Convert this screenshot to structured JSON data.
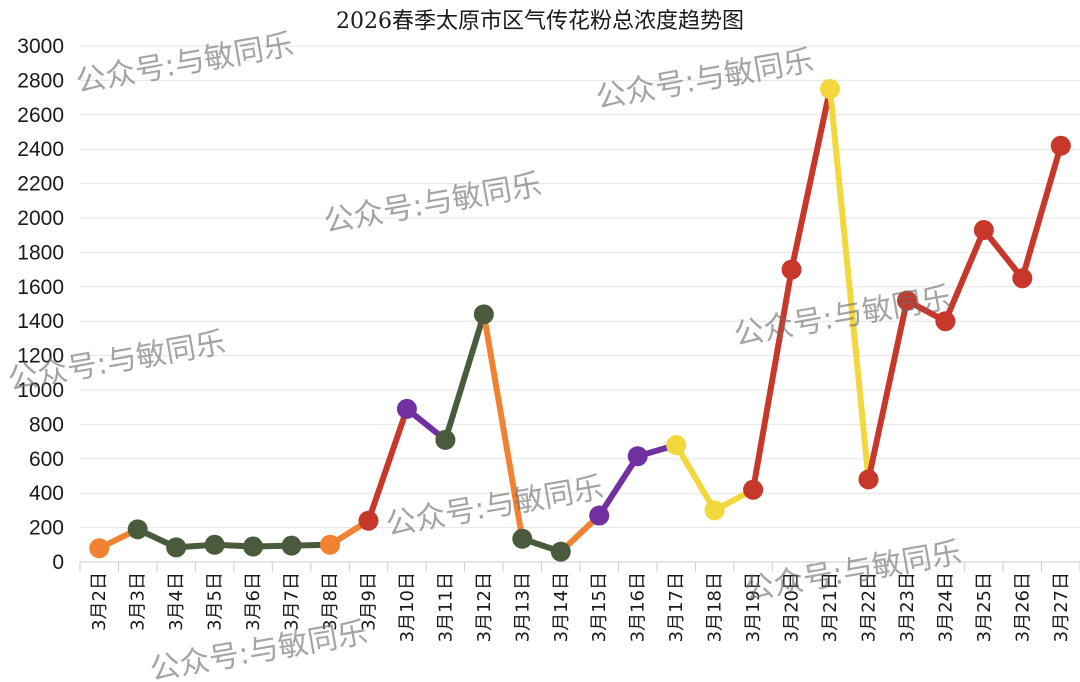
{
  "chart_data": {
    "type": "line",
    "title": "2026春季太原市区气传花粉总浓度趋势图",
    "categories": [
      "3月2日",
      "3月3日",
      "3月4日",
      "3月5日",
      "3月6日",
      "3月7日",
      "3月8日",
      "3月9日",
      "3月10日",
      "3月11日",
      "3月12日",
      "3月13日",
      "3月14日",
      "3月15日",
      "3月16日",
      "3月17日",
      "3月18日",
      "3月19日",
      "3月20日",
      "3月21日",
      "3月22日",
      "3月23日",
      "3月24日",
      "3月25日",
      "3月26日",
      "3月27日"
    ],
    "values": [
      80,
      190,
      85,
      100,
      90,
      95,
      100,
      240,
      890,
      710,
      1440,
      135,
      60,
      270,
      615,
      680,
      300,
      420,
      1700,
      2750,
      480,
      1520,
      1400,
      1930,
      1650,
      2420
    ],
    "point_colors": [
      "#F08232",
      "#4A5A3C",
      "#4A5A3C",
      "#4A5A3C",
      "#4A5A3C",
      "#4A5A3C",
      "#F08232",
      "#C8382A",
      "#7030A0",
      "#4A5A3C",
      "#4A5A3C",
      "#4A5A3C",
      "#4A5A3C",
      "#7030A0",
      "#7030A0",
      "#F2D83C",
      "#F2D83C",
      "#C8382A",
      "#C8382A",
      "#F2D83C",
      "#C8382A",
      "#C8382A",
      "#C8382A",
      "#C8382A",
      "#C8382A",
      "#C8382A"
    ],
    "segment_colors": [
      "#F08232",
      "#4A5A3C",
      "#4A5A3C",
      "#4A5A3C",
      "#4A5A3C",
      "#4A5A3C",
      "#F08232",
      "#C8382A",
      "#7030A0",
      "#4A5A3C",
      "#F08232",
      "#4A5A3C",
      "#F08232",
      "#7030A0",
      "#7030A0",
      "#F2D83C",
      "#F2D83C",
      "#C8382A",
      "#C8382A",
      "#F2D83C",
      "#C8382A",
      "#C8382A",
      "#C8382A",
      "#C8382A",
      "#C8382A"
    ],
    "ylim": [
      0,
      3000
    ],
    "yticks": [
      0,
      200,
      400,
      600,
      800,
      1000,
      1200,
      1400,
      1600,
      1800,
      2000,
      2200,
      2400,
      2600,
      2800,
      3000
    ],
    "grid": true,
    "xlabel": "",
    "ylabel": ""
  },
  "watermark": "公众号:与敏同乐"
}
